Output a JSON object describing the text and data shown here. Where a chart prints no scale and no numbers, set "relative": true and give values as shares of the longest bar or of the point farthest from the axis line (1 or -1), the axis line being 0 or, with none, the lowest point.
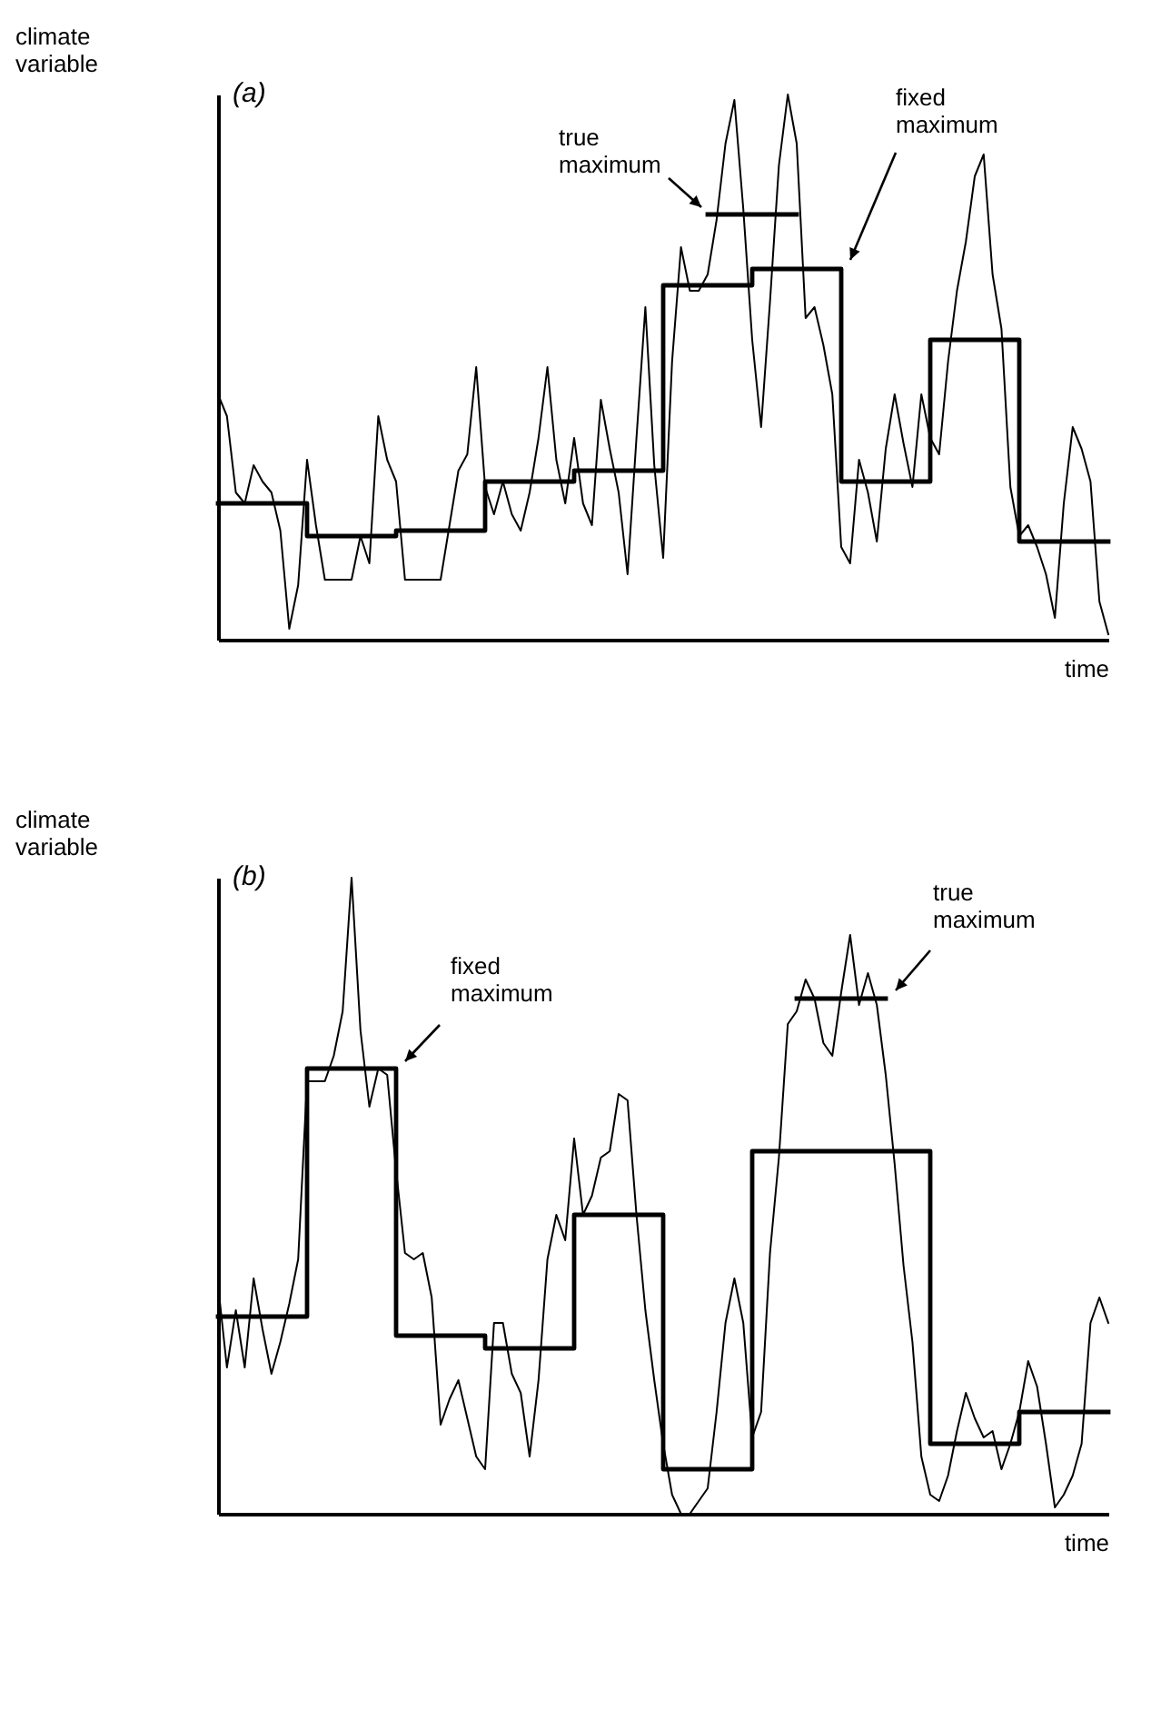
{
  "chart_data": [
    {
      "type": "line",
      "title": "(a)",
      "xlabel": "time",
      "ylabel": "climate variable",
      "relative": true,
      "categories": [
        null,
        null,
        null,
        null,
        null,
        null,
        null,
        null,
        null,
        null,
        null,
        null,
        null,
        null,
        null,
        null,
        null,
        null,
        null,
        null,
        null,
        null,
        null,
        null,
        null,
        null,
        null,
        null,
        null,
        null,
        null,
        null,
        null,
        null,
        null,
        null,
        null,
        null,
        null,
        null,
        null,
        null,
        null,
        null,
        null,
        null,
        null,
        null,
        null,
        null,
        null,
        null,
        null,
        null,
        null,
        null,
        null,
        null,
        null,
        null,
        null,
        null,
        null,
        null,
        null,
        null,
        null,
        null,
        null,
        null,
        null,
        null,
        null,
        null,
        null,
        null,
        null,
        null,
        null,
        null,
        null,
        null,
        null,
        null,
        null,
        null,
        null,
        null,
        null,
        null,
        null,
        null,
        null,
        null,
        null,
        null,
        null,
        null,
        null,
        null,
        null
      ],
      "series": [
        {
          "color": "#000000",
          "values": [
            0.45,
            0.41,
            0.27,
            0.25,
            0.32,
            0.29,
            0.27,
            0.2,
            0.02,
            0.1,
            0.33,
            0.21,
            0.11,
            0.11,
            0.11,
            0.11,
            0.19,
            0.14,
            0.41,
            0.33,
            0.29,
            0.11,
            0.11,
            0.11,
            0.11,
            0.11,
            0.21,
            0.31,
            0.34,
            0.5,
            0.28,
            0.23,
            0.29,
            0.23,
            0.2,
            0.27,
            0.37,
            0.5,
            0.33,
            0.25,
            0.37,
            0.25,
            0.21,
            0.44,
            0.35,
            0.27,
            0.12,
            0.37,
            0.61,
            0.32,
            0.15,
            0.51,
            0.72,
            0.64,
            0.64,
            0.67,
            0.77,
            0.91,
            0.99,
            0.79,
            0.55,
            0.39,
            0.62,
            0.87,
            1.0,
            0.91,
            0.59,
            0.61,
            0.54,
            0.45,
            0.17,
            0.14,
            0.33,
            0.27,
            0.18,
            0.35,
            0.45,
            0.36,
            0.28,
            0.45,
            0.37,
            0.34,
            0.51,
            0.64,
            0.73,
            0.85,
            0.89,
            0.67,
            0.57,
            0.28,
            0.19,
            0.21,
            0.17,
            0.12,
            0.04,
            0.25,
            0.39,
            0.35,
            0.29,
            0.07,
            0.01
          ]
        },
        {
          "name": "fixed maximum",
          "type": "step",
          "color": "#000000",
          "values": [
            0.25,
            0.25,
            0.25,
            0.25,
            0.25,
            0.25,
            0.25,
            0.25,
            0.25,
            0.25,
            0.19,
            0.19,
            0.19,
            0.19,
            0.19,
            0.19,
            0.19,
            0.19,
            0.19,
            0.19,
            0.2,
            0.2,
            0.2,
            0.2,
            0.2,
            0.2,
            0.2,
            0.2,
            0.2,
            0.2,
            0.29,
            0.29,
            0.29,
            0.29,
            0.29,
            0.29,
            0.29,
            0.29,
            0.29,
            0.29,
            0.31,
            0.31,
            0.31,
            0.31,
            0.31,
            0.31,
            0.31,
            0.31,
            0.31,
            0.31,
            0.65,
            0.65,
            0.65,
            0.65,
            0.65,
            0.65,
            0.65,
            0.65,
            0.65,
            0.65,
            0.68,
            0.68,
            0.68,
            0.68,
            0.68,
            0.68,
            0.68,
            0.68,
            0.68,
            0.68,
            0.29,
            0.29,
            0.29,
            0.29,
            0.29,
            0.29,
            0.29,
            0.29,
            0.29,
            0.29,
            0.55,
            0.55,
            0.55,
            0.55,
            0.55,
            0.55,
            0.55,
            0.55,
            0.55,
            0.55,
            0.18,
            0.18,
            0.18,
            0.18,
            0.18,
            0.18,
            0.18,
            0.18,
            0.18,
            0.18,
            0.18
          ]
        },
        {
          "name": "true maximum",
          "type": "step",
          "color": "#000000",
          "values": [
            null,
            null,
            null,
            null,
            null,
            null,
            null,
            null,
            null,
            null,
            null,
            null,
            null,
            null,
            null,
            null,
            null,
            null,
            null,
            null,
            null,
            null,
            null,
            null,
            null,
            null,
            null,
            null,
            null,
            null,
            null,
            null,
            null,
            null,
            null,
            null,
            null,
            null,
            null,
            null,
            null,
            null,
            null,
            null,
            null,
            null,
            null,
            null,
            null,
            null,
            null,
            null,
            null,
            null,
            null,
            0.78,
            0.78,
            0.78,
            0.78,
            0.78,
            0.78,
            0.78,
            0.78,
            0.78,
            0.78,
            0.78,
            null,
            null,
            null,
            null,
            null,
            null,
            null,
            null,
            null,
            null,
            null,
            null,
            null,
            null,
            null,
            null,
            null,
            null,
            null,
            null,
            null,
            null,
            null,
            null,
            null,
            null,
            null,
            null,
            null,
            null,
            null,
            null,
            null,
            null,
            null
          ]
        }
      ]
    },
    {
      "type": "line",
      "title": "(b)",
      "xlabel": "time",
      "ylabel": "climate variable",
      "relative": true,
      "categories": [
        null,
        null,
        null,
        null,
        null,
        null,
        null,
        null,
        null,
        null,
        null,
        null,
        null,
        null,
        null,
        null,
        null,
        null,
        null,
        null,
        null,
        null,
        null,
        null,
        null,
        null,
        null,
        null,
        null,
        null,
        null,
        null,
        null,
        null,
        null,
        null,
        null,
        null,
        null,
        null,
        null,
        null,
        null,
        null,
        null,
        null,
        null,
        null,
        null,
        null,
        null,
        null,
        null,
        null,
        null,
        null,
        null,
        null,
        null,
        null,
        null,
        null,
        null,
        null,
        null,
        null,
        null,
        null,
        null,
        null,
        null,
        null,
        null,
        null,
        null,
        null,
        null,
        null,
        null,
        null,
        null,
        null,
        null,
        null,
        null,
        null,
        null,
        null,
        null,
        null,
        null,
        null,
        null,
        null,
        null,
        null,
        null,
        null,
        null,
        null,
        null
      ],
      "series": [
        {
          "color": "#000000",
          "values": [
            0.36,
            0.23,
            0.32,
            0.23,
            0.37,
            0.29,
            0.22,
            0.27,
            0.33,
            0.4,
            0.68,
            0.68,
            0.68,
            0.72,
            0.79,
            1.0,
            0.76,
            0.64,
            0.7,
            0.69,
            0.54,
            0.41,
            0.4,
            0.41,
            0.34,
            0.14,
            0.18,
            0.21,
            0.15,
            0.09,
            0.07,
            0.3,
            0.3,
            0.22,
            0.19,
            0.09,
            0.21,
            0.4,
            0.47,
            0.43,
            0.59,
            0.47,
            0.5,
            0.56,
            0.57,
            0.66,
            0.65,
            0.47,
            0.32,
            0.21,
            0.11,
            0.03,
            0.0,
            0.0,
            0.02,
            0.04,
            0.16,
            0.3,
            0.37,
            0.3,
            0.12,
            0.16,
            0.41,
            0.56,
            0.77,
            0.79,
            0.84,
            0.81,
            0.74,
            0.72,
            0.82,
            0.91,
            0.8,
            0.85,
            0.8,
            0.69,
            0.55,
            0.39,
            0.27,
            0.09,
            0.03,
            0.02,
            0.06,
            0.13,
            0.19,
            0.15,
            0.12,
            0.13,
            0.07,
            0.11,
            0.16,
            0.24,
            0.2,
            0.11,
            0.01,
            0.03,
            0.06,
            0.11,
            0.3,
            0.34,
            0.3
          ]
        },
        {
          "name": "fixed maximum",
          "type": "step",
          "color": "#000000",
          "values": [
            0.31,
            0.31,
            0.31,
            0.31,
            0.31,
            0.31,
            0.31,
            0.31,
            0.31,
            0.31,
            0.7,
            0.7,
            0.7,
            0.7,
            0.7,
            0.7,
            0.7,
            0.7,
            0.7,
            0.7,
            0.28,
            0.28,
            0.28,
            0.28,
            0.28,
            0.28,
            0.28,
            0.28,
            0.28,
            0.28,
            0.26,
            0.26,
            0.26,
            0.26,
            0.26,
            0.26,
            0.26,
            0.26,
            0.26,
            0.26,
            0.47,
            0.47,
            0.47,
            0.47,
            0.47,
            0.47,
            0.47,
            0.47,
            0.47,
            0.47,
            0.07,
            0.07,
            0.07,
            0.07,
            0.07,
            0.07,
            0.07,
            0.07,
            0.07,
            0.07,
            0.57,
            0.57,
            0.57,
            0.57,
            0.57,
            0.57,
            0.57,
            0.57,
            0.57,
            0.57,
            0.57,
            0.57,
            0.57,
            0.57,
            0.57,
            0.57,
            0.57,
            0.57,
            0.57,
            0.57,
            0.11,
            0.11,
            0.11,
            0.11,
            0.11,
            0.11,
            0.11,
            0.11,
            0.11,
            0.11,
            0.16,
            0.16,
            0.16,
            0.16,
            0.16,
            0.16,
            0.16,
            0.16,
            0.16,
            0.16,
            0.16
          ]
        },
        {
          "name": "true maximum",
          "type": "step",
          "color": "#000000",
          "values": [
            null,
            null,
            null,
            null,
            null,
            null,
            null,
            null,
            null,
            null,
            null,
            null,
            null,
            null,
            null,
            null,
            null,
            null,
            null,
            null,
            null,
            null,
            null,
            null,
            null,
            null,
            null,
            null,
            null,
            null,
            null,
            null,
            null,
            null,
            null,
            null,
            null,
            null,
            null,
            null,
            null,
            null,
            null,
            null,
            null,
            null,
            null,
            null,
            null,
            null,
            null,
            null,
            null,
            null,
            null,
            null,
            null,
            null,
            null,
            null,
            null,
            null,
            null,
            null,
            null,
            0.81,
            0.81,
            0.81,
            0.81,
            0.81,
            0.81,
            0.81,
            0.81,
            0.81,
            0.81,
            0.81,
            null,
            null,
            null,
            null,
            null,
            null,
            null,
            null,
            null,
            null,
            null,
            null,
            null,
            null,
            null,
            null,
            null,
            null,
            null,
            null,
            null,
            null,
            null,
            null,
            null
          ]
        }
      ]
    }
  ]
}
